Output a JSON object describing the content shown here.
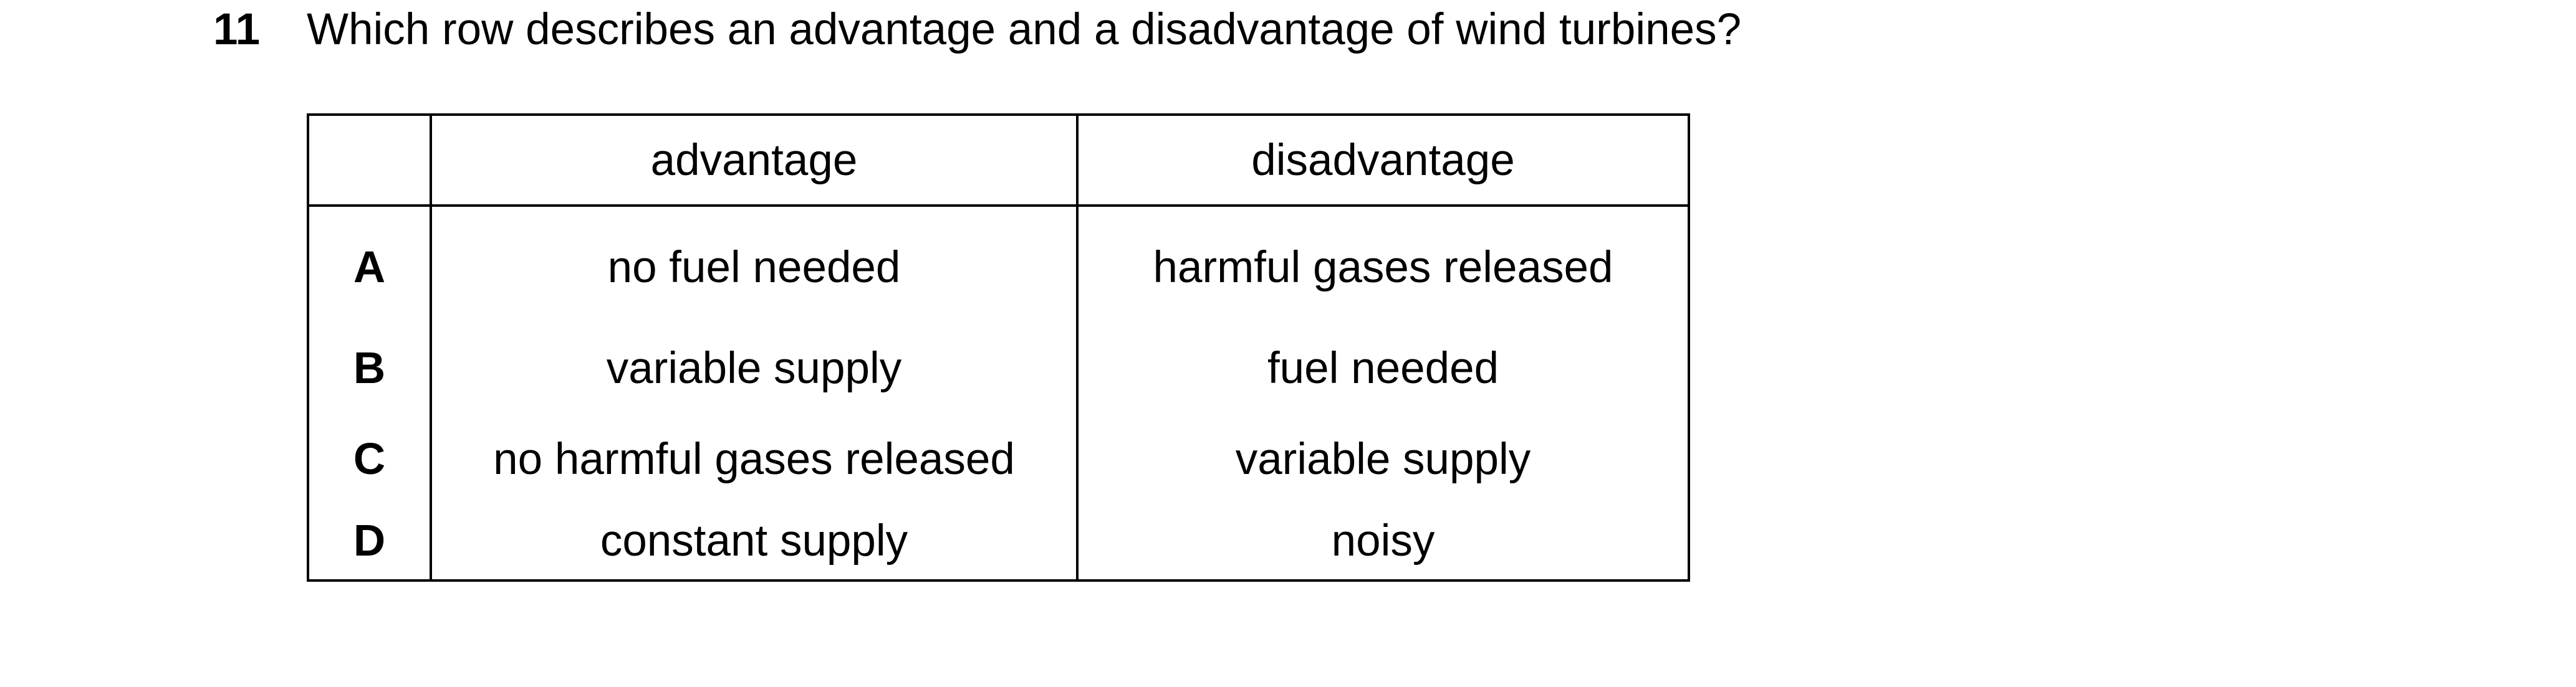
{
  "question": {
    "number": "11",
    "text": "Which row describes an advantage and a disadvantage of wind turbines?"
  },
  "table": {
    "headers": [
      "",
      "advantage",
      "disadvantage"
    ],
    "rows": [
      {
        "letter": "A",
        "advantage": "no fuel needed",
        "disadvantage": "harmful gases released"
      },
      {
        "letter": "B",
        "advantage": "variable supply",
        "disadvantage": "fuel needed"
      },
      {
        "letter": "C",
        "advantage": "no harmful gases released",
        "disadvantage": "variable supply"
      },
      {
        "letter": "D",
        "advantage": "constant supply",
        "disadvantage": "noisy"
      }
    ]
  }
}
